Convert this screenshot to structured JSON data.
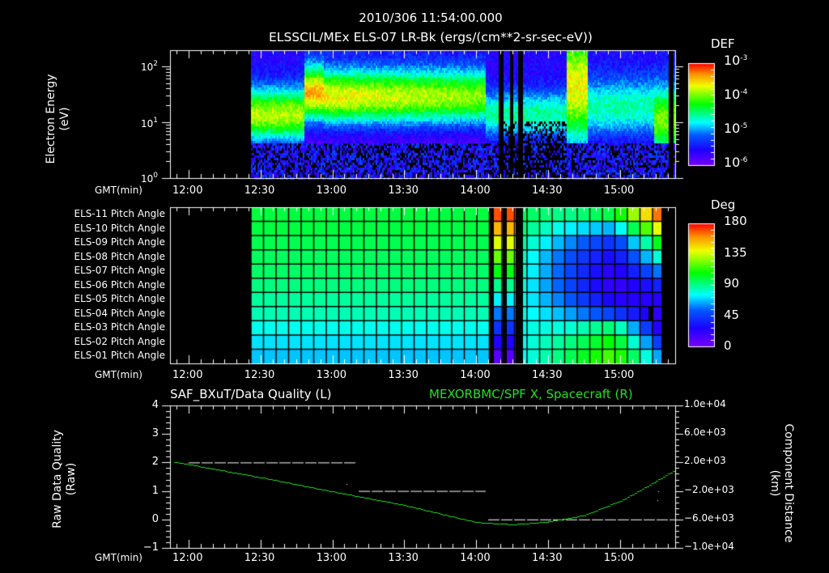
{
  "header": {
    "timestamp": "2010/306 11:54:00.000",
    "subtitle": "ELSSCIL/MEx ELS-07 LR-Bk  (ergs/(cm**2-sr-sec-eV))"
  },
  "time_axis": {
    "label": "GMT(min)",
    "ticks": [
      "12:00",
      "12:30",
      "13:00",
      "13:30",
      "14:00",
      "14:30",
      "15:00"
    ]
  },
  "panel1": {
    "ylabel_line1": "Electron Energy",
    "ylabel_line2": "(eV)",
    "yticks": [
      {
        "base": "10",
        "exp": "2"
      },
      {
        "base": "10",
        "exp": "1"
      },
      {
        "base": "10",
        "exp": "0"
      }
    ],
    "colorbar": {
      "title": "DEF",
      "ticks": [
        {
          "base": "10",
          "exp": "-3"
        },
        {
          "base": "10",
          "exp": "-4"
        },
        {
          "base": "10",
          "exp": "-5"
        },
        {
          "base": "10",
          "exp": "-6"
        }
      ]
    }
  },
  "panel2": {
    "row_labels": [
      "ELS-11 Pitch Angle",
      "ELS-10 Pitch Angle",
      "ELS-09 Pitch Angle",
      "ELS-08 Pitch Angle",
      "ELS-07 Pitch Angle",
      "ELS-06 Pitch Angle",
      "ELS-05 Pitch Angle",
      "ELS-04 Pitch Angle",
      "ELS-03 Pitch Angle",
      "ELS-02 Pitch Angle",
      "ELS-01 Pitch Angle"
    ],
    "colorbar": {
      "title": "Deg",
      "ticks": [
        "180",
        "135",
        "90",
        "45",
        "0"
      ]
    }
  },
  "panel3": {
    "left_title": "SAF_BXuT/Data Quality (L)",
    "right_title": "MEXORBMC/SPF X, Spacecraft (R)",
    "left_ylabel_line1": "Raw Data Quality",
    "left_ylabel_line2": "(Raw)",
    "right_ylabel_line1": "Component Distance",
    "right_ylabel_line2": "(km)",
    "left_yticks": [
      "4",
      "3",
      "2",
      "1",
      "0",
      "−1"
    ],
    "right_yticks": [
      "1.0e+04",
      "6.0e+03",
      "2.0e+03",
      "−2.0e+03",
      "−6.0e+03",
      "−1.0e+04"
    ]
  },
  "colors": {
    "background": "#000000",
    "axes": "#ffffff",
    "spacecraft_x_line": "#22e022",
    "quality_line": "#ffffff"
  },
  "chart_data": [
    {
      "type": "heatmap",
      "title": "ELSSCIL/MEx ELS-07 LR-Bk (ergs/(cm**2-sr-sec-eV))",
      "xlabel": "GMT(min)",
      "ylabel": "Electron Energy (eV)",
      "x_range": [
        "11:54",
        "15:27"
      ],
      "y_scale": "log",
      "ylim": [
        1,
        150
      ],
      "colorbar": {
        "label": "DEF",
        "scale": "log",
        "range": [
          1e-06,
          0.001
        ]
      },
      "data_start": "12:26",
      "gaps": [
        [
          "14:09",
          "14:11"
        ],
        [
          "14:14",
          "14:15"
        ],
        [
          "14:17",
          "14:19"
        ],
        [
          "15:20",
          "15:22"
        ]
      ],
      "features": [
        {
          "time": [
            "12:26",
            "12:50"
          ],
          "peak_energy_eV": 7,
          "level": "1e-4"
        },
        {
          "time": [
            "12:50",
            "12:53"
          ],
          "peak_energy_eV": 30,
          "level": "3e-4"
        },
        {
          "time": [
            "12:55",
            "14:08"
          ],
          "peak_energy_eV": 30,
          "level": "2e-4 decreasing to 1e-4"
        },
        {
          "time": [
            "14:40",
            "14:43"
          ],
          "peak_energy_eV": 80,
          "level": "2e-4"
        },
        {
          "time": [
            "15:22",
            "15:27"
          ],
          "peak_energy_eV": 10,
          "level": "1e-4"
        }
      ]
    },
    {
      "type": "heatmap",
      "title": "ELS Pitch Angle",
      "xlabel": "GMT(min)",
      "categories": [
        "ELS-11",
        "ELS-10",
        "ELS-09",
        "ELS-08",
        "ELS-07",
        "ELS-06",
        "ELS-05",
        "ELS-04",
        "ELS-03",
        "ELS-02",
        "ELS-01"
      ],
      "colorbar": {
        "label": "Deg",
        "range": [
          0,
          180
        ]
      },
      "data_start": "12:26",
      "values_summary": {
        "12:26-14:09": [
          100,
          100,
          98,
          96,
          95,
          92,
          88,
          85,
          78,
          72,
          68
        ],
        "14:35": [
          90,
          75,
          62,
          52,
          50,
          50,
          55,
          65,
          80,
          90,
          95
        ],
        "14:55": [
          100,
          65,
          40,
          28,
          20,
          18,
          25,
          45,
          95,
          110,
          120
        ],
        "15:15": [
          170,
          145,
          110,
          85,
          60,
          38,
          25,
          20,
          20,
          40,
          60
        ]
      }
    },
    {
      "type": "line",
      "title": "SAF_BXuT/Data Quality (L)",
      "xlabel": "GMT(min)",
      "ylabel": "Raw Data Quality (Raw)",
      "ylim": [
        -1,
        4
      ],
      "x": [
        "12:00",
        "13:10",
        "13:11",
        "14:04",
        "14:05",
        "15:23"
      ],
      "values": [
        2,
        2,
        1,
        1,
        0,
        0
      ]
    },
    {
      "type": "line",
      "title": "MEXORBMC/SPF X, Spacecraft (R)",
      "xlabel": "GMT(min)",
      "ylabel": "Component Distance (km)",
      "ylim": [
        -10000,
        10000
      ],
      "x": [
        "11:54",
        "12:30",
        "13:00",
        "13:30",
        "14:00",
        "14:15",
        "14:30",
        "14:45",
        "15:00",
        "15:15",
        "15:27"
      ],
      "values": [
        2100,
        -100,
        -2100,
        -4000,
        -6400,
        -6700,
        -6300,
        -5400,
        -3400,
        -600,
        1800
      ]
    }
  ]
}
